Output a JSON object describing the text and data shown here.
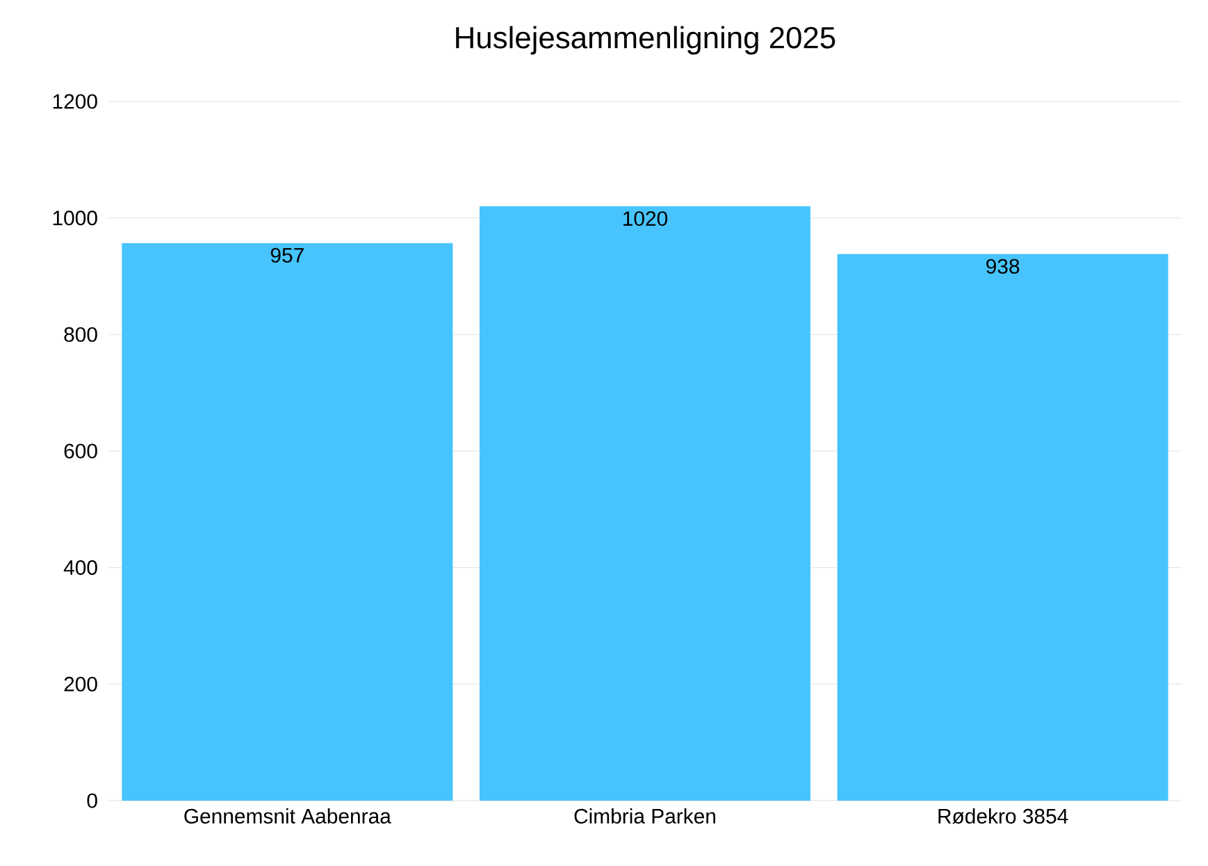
{
  "chart_data": {
    "type": "bar",
    "title": "Huslejesammenligning 2025",
    "categories": [
      "Gennemsnit Aabenraa",
      "Cimbria Parken",
      "Rødekro 3854"
    ],
    "values": [
      957,
      1020,
      938
    ],
    "color": "#47c4fd",
    "ylim": [
      0,
      1200
    ],
    "yticks": [
      0,
      200,
      400,
      600,
      800,
      1000,
      1200
    ],
    "grid": "y",
    "data_labels": true
  }
}
